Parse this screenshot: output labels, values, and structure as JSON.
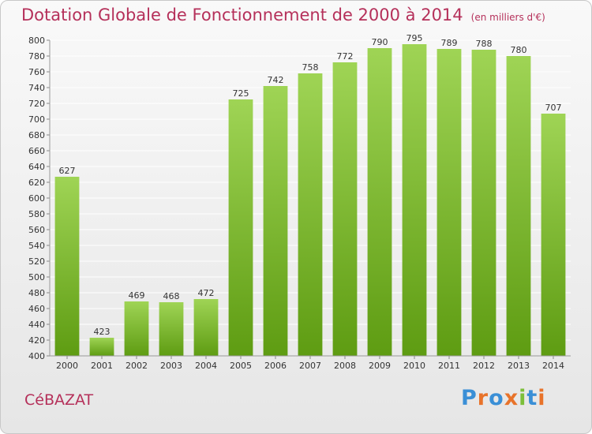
{
  "header": {
    "title": "Dotation Globale de Fonctionnement de 2000 à 2014",
    "subtitle": "(en milliers d'€)"
  },
  "footer": {
    "commune": "CéBAZAT",
    "logo_letters": [
      "P",
      "r",
      "o",
      "x",
      "i",
      "t",
      "i"
    ]
  },
  "colors": {
    "title": "#b5305a",
    "bar_top": "#9fd455",
    "bar_bottom": "#5e9c12",
    "grid": "#ffffff",
    "label": "#333333"
  },
  "chart_data": {
    "type": "bar",
    "title": "Dotation Globale de Fonctionnement de 2000 à 2014",
    "subtitle": "(en milliers d'€)",
    "categories": [
      "2000",
      "2001",
      "2002",
      "2003",
      "2004",
      "2005",
      "2006",
      "2007",
      "2008",
      "2009",
      "2010",
      "2011",
      "2012",
      "2013",
      "2014"
    ],
    "values": [
      627,
      423,
      469,
      468,
      472,
      725,
      742,
      758,
      772,
      790,
      795,
      789,
      788,
      780,
      707
    ],
    "xlabel": "",
    "ylabel": "",
    "ylim": [
      400,
      800
    ],
    "yticks": [
      400,
      420,
      440,
      460,
      480,
      500,
      520,
      540,
      560,
      580,
      600,
      620,
      640,
      660,
      680,
      700,
      720,
      740,
      760,
      780,
      800
    ],
    "grid": true,
    "data_labels": true
  }
}
